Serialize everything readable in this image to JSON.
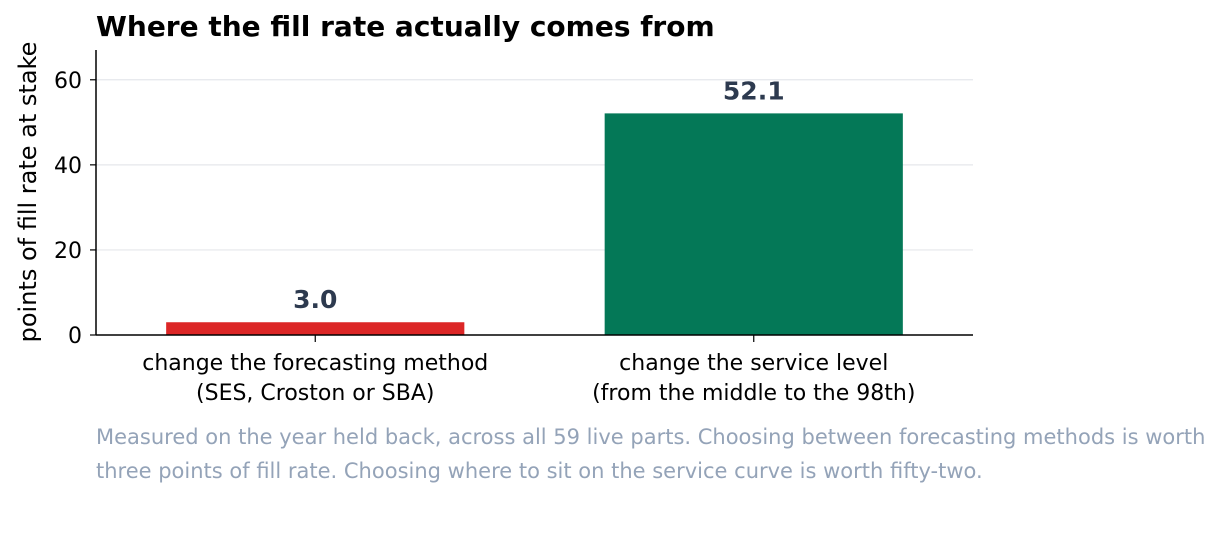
{
  "chart_data": {
    "type": "bar",
    "title": "Where the fill rate actually comes from",
    "ylabel": "points of fill rate at stake",
    "xlabel": "",
    "ylim": [
      0,
      67
    ],
    "yticks": [
      0,
      20,
      40,
      60
    ],
    "grid": true,
    "categories": [
      [
        "change the forecasting method",
        "(SES, Croston or SBA)"
      ],
      [
        "change the service level",
        "(from the middle to the 98th)"
      ]
    ],
    "values": [
      3.0,
      52.1
    ],
    "value_labels": [
      "3.0",
      "52.1"
    ],
    "colors": [
      "#dc2626",
      "#047857"
    ]
  },
  "caption": "Measured on the year held back, across all 59 live parts. Choosing between forecasting methods is worth three points of fill rate. Choosing where to sit on the service curve is worth fifty-two."
}
